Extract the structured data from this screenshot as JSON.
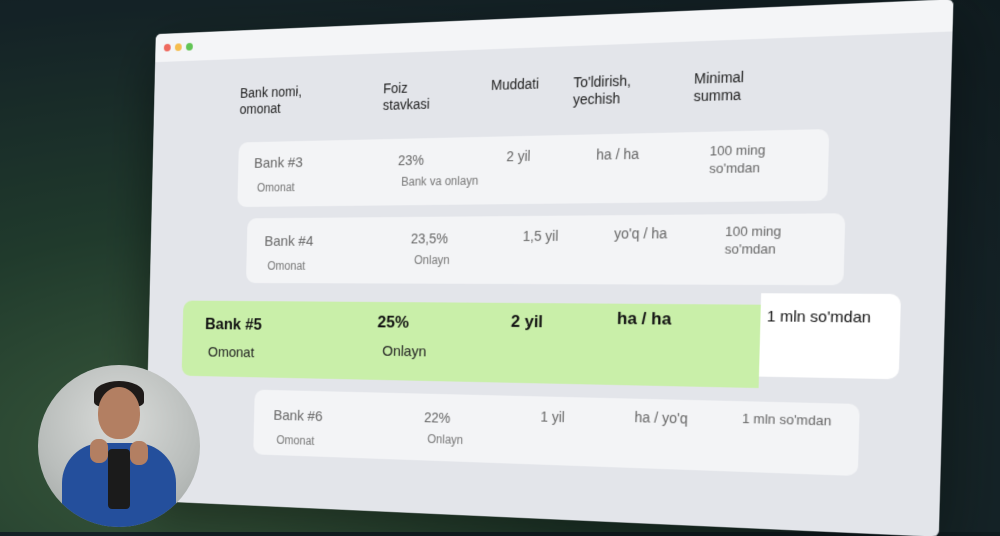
{
  "table": {
    "headers": {
      "bank": "Bank nomi,\nomonat",
      "rate": "Foiz\nstavkasi",
      "term": "Muddati",
      "topup": "To'ldirish,\nyechish",
      "min": "Minimal\nsumma"
    },
    "rows": [
      {
        "bank": "Bank #3",
        "type": "Omonat",
        "rate": "23%",
        "channel": "Bank va onlayn",
        "term": "2 yil",
        "topup": "ha / ha",
        "min": "100 ming\nso'mdan"
      },
      {
        "bank": "Bank #4",
        "type": "Omonat",
        "rate": "23,5%",
        "channel": "Onlayn",
        "term": "1,5 yil",
        "topup": "yo'q / ha",
        "min": "100 ming\nso'mdan"
      },
      {
        "bank": "Bank #5",
        "type": "Omonat",
        "rate": "25%",
        "channel": "Onlayn",
        "term": "2 yil",
        "topup": "ha / ha",
        "min": "1 mln so'mdan"
      },
      {
        "bank": "Bank #6",
        "type": "Omonat",
        "rate": "22%",
        "channel": "Onlayn",
        "term": "1 yil",
        "topup": "ha / yo'q",
        "min": "1 mln so'mdan"
      }
    ]
  },
  "colors": {
    "highlight": "#c9efa9",
    "row_bg": "#f3f4f6",
    "window_bg": "#e3e5ea"
  }
}
